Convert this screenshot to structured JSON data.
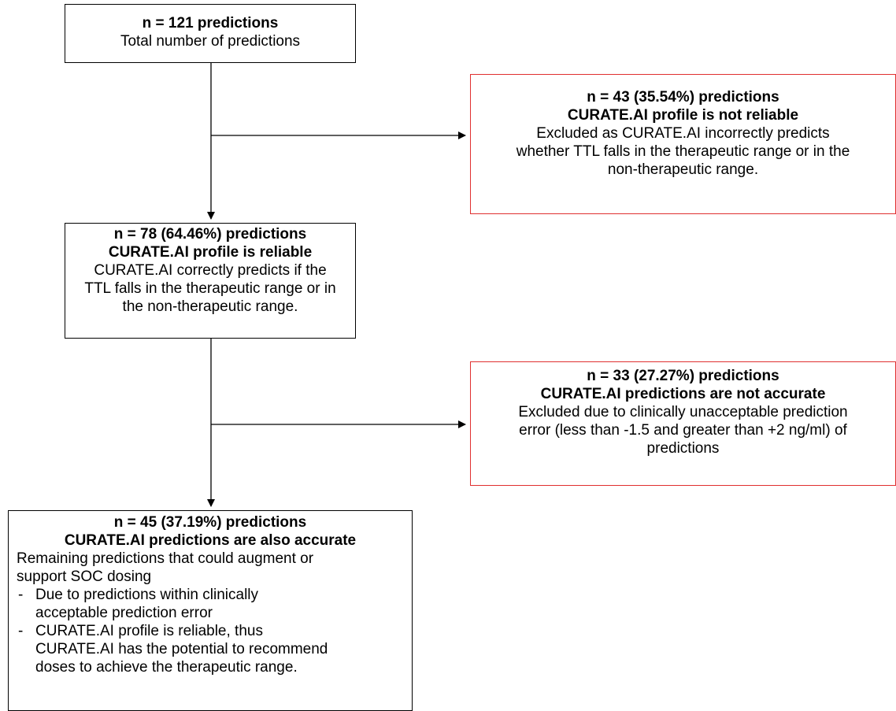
{
  "boxes": {
    "total": {
      "title": "n = 121 predictions",
      "subtitle": "Total number of predictions"
    },
    "excluded_unreliable": {
      "title": "n = 43 (35.54%)  predictions",
      "heading": "CURATE.AI profile is not reliable",
      "lines": [
        "Excluded as CURATE.AI incorrectly predicts",
        "whether TTL  falls in the therapeutic range or in the",
        "non-therapeutic range."
      ]
    },
    "reliable": {
      "title": "n = 78 (64.46%)  predictions",
      "heading": "CURATE.AI profile is reliable",
      "lines": [
        "CURATE.AI correctly predicts if the",
        "TTL  falls in the therapeutic range or in",
        "the non-therapeutic range."
      ]
    },
    "excluded_inaccurate": {
      "title": "n = 33 (27.27%)  predictions",
      "heading": "CURATE.AI predictions are not accurate",
      "lines": [
        "Excluded due to clinically unacceptable prediction",
        "error (less than -1.5 and greater than +2 ng/ml) of",
        "predictions"
      ]
    },
    "accurate": {
      "title": "n = 45 (37.19%)  predictions",
      "heading": "CURATE.AI predictions are also accurate",
      "lines": [
        "Remaining predictions that could augment or",
        "support SOC dosing"
      ],
      "bullet_marker": "-",
      "bullets": [
        [
          "Due to predictions within clinically",
          "acceptable prediction error"
        ],
        [
          "CURATE.AI profile is reliable, thus",
          "CURATE.AI has the potential to recommend",
          "doses to achieve the therapeutic range."
        ]
      ]
    }
  },
  "colors": {
    "box_border": "#000000",
    "excluded_border": "#e03030",
    "arrow": "#000000"
  }
}
